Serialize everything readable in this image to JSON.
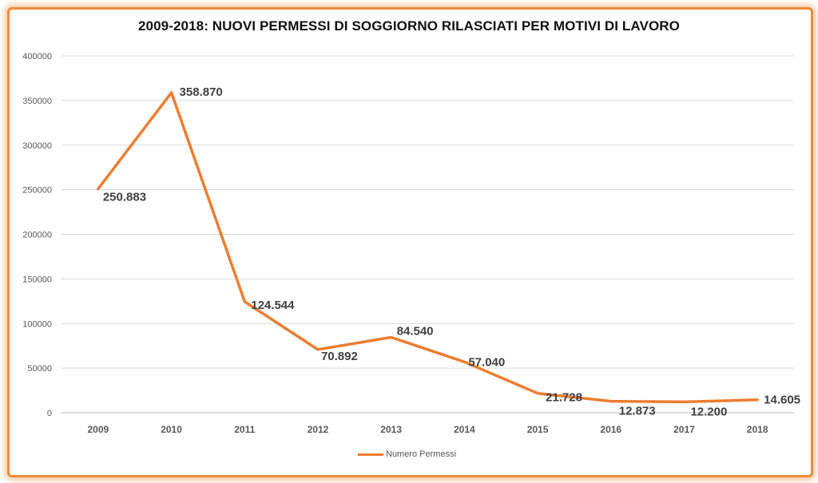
{
  "chart_data": {
    "type": "line",
    "title": "2009-2018: NUOVI PERMESSI DI SOGGIORNO RILASCIATI PER MOTIVI DI LAVORO",
    "xlabel": "",
    "ylabel": "",
    "categories": [
      "2009",
      "2010",
      "2011",
      "2012",
      "2013",
      "2014",
      "2015",
      "2016",
      "2017",
      "2018"
    ],
    "series": [
      {
        "name": "Numero Permessi",
        "color": "#ed7d31",
        "values": [
          250883,
          358870,
          124544,
          70892,
          84540,
          57040,
          21728,
          12873,
          12200,
          14605
        ],
        "labels": [
          "250.883",
          "358.870",
          "124.544",
          "70.892",
          "84.540",
          "57.040",
          "21.728",
          "12.873",
          "12.200",
          "14.605"
        ]
      }
    ],
    "ylim": [
      0,
      400000
    ],
    "yticks": [
      0,
      50000,
      100000,
      150000,
      200000,
      250000,
      300000,
      350000,
      400000
    ],
    "grid": true,
    "legend_position": "bottom"
  }
}
